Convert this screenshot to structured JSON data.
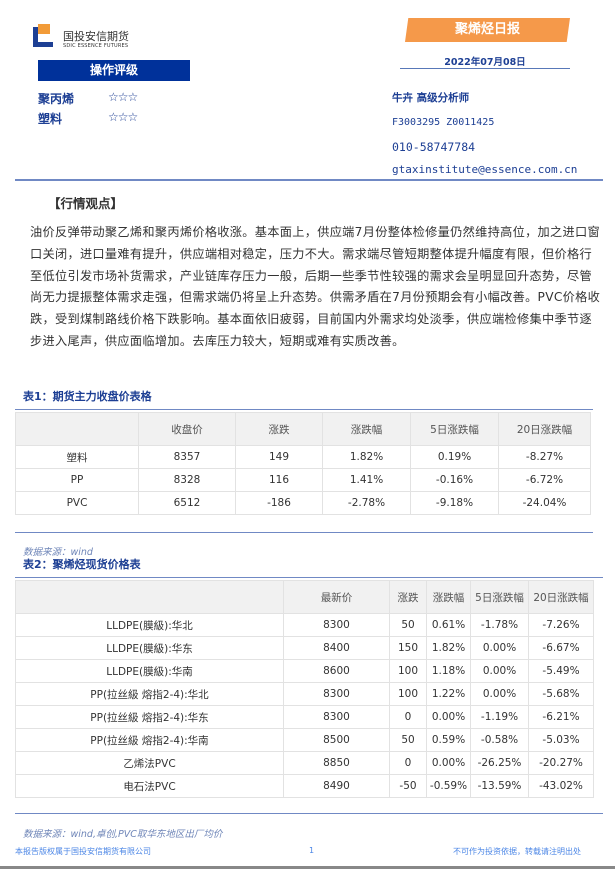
{
  "header": {
    "logo_cn": "国投安信期货",
    "logo_en": "SDIC ESSENCE FUTURES",
    "report_title": "聚烯烃日报",
    "date": "2022年07月08日"
  },
  "rating": {
    "title": "操作评级",
    "items": [
      {
        "label": "聚丙烯",
        "stars": "☆☆☆"
      },
      {
        "label": "塑料",
        "stars": "☆☆☆"
      }
    ]
  },
  "analyst": {
    "name": "牛卉 高级分析师",
    "codes": "F3003295 Z0011425",
    "phone": "010-58747784",
    "email": "gtaxinstitute@essence.com.cn"
  },
  "market_view": {
    "heading": "【行情观点】",
    "text": "油价反弹带动聚乙烯和聚丙烯价格收涨。基本面上，供应端7月份整体检修量仍然维持高位，加之进口窗口关闭，进口量难有提升，供应端相对稳定，压力不大。需求端尽管短期整体提升幅度有限，但价格行至低位引发市场补货需求，产业链库存压力一般，后期一些季节性较强的需求会呈明显回升态势，尽管尚无力提振整体需求走强，但需求端仍将呈上升态势。供需矛盾在7月份预期会有小幅改善。PVC价格收跌，受到煤制路线价格下跌影响。基本面依旧疲弱，目前国内外需求均处淡季，供应端检修集中季节逐步进入尾声，供应面临增加。去库压力较大，短期或难有实质改善。"
  },
  "table1": {
    "title": "表1：期货主力收盘价表格",
    "headers": [
      "",
      "收盘价",
      "涨跌",
      "涨跌幅",
      "5日涨跌幅",
      "20日涨跌幅"
    ],
    "rows": [
      [
        "塑料",
        "8357",
        "149",
        "1.82%",
        "0.19%",
        "-8.27%"
      ],
      [
        "PP",
        "8328",
        "116",
        "1.41%",
        "-0.16%",
        "-6.72%"
      ],
      [
        "PVC",
        "6512",
        "-186",
        "-2.78%",
        "-9.18%",
        "-24.04%"
      ]
    ],
    "source": "数据来源：wind"
  },
  "table2": {
    "title": "表2：聚烯烃现货价格表",
    "headers": [
      "",
      "最新价",
      "涨跌",
      "涨跌幅",
      "5日涨跌幅",
      "20日涨跌幅"
    ],
    "rows": [
      [
        "LLDPE(膜級):华北",
        "8300",
        "50",
        "0.61%",
        "-1.78%",
        "-7.26%"
      ],
      [
        "LLDPE(膜級):华东",
        "8400",
        "150",
        "1.82%",
        "0.00%",
        "-6.67%"
      ],
      [
        "LLDPE(膜級):华南",
        "8600",
        "100",
        "1.18%",
        "0.00%",
        "-5.49%"
      ],
      [
        "PP(拉丝級 熔指2-4):华北",
        "8300",
        "100",
        "1.22%",
        "0.00%",
        "-5.68%"
      ],
      [
        "PP(拉丝級 熔指2-4):华东",
        "8300",
        "0",
        "0.00%",
        "-1.19%",
        "-6.21%"
      ],
      [
        "PP(拉丝級 熔指2-4):华南",
        "8500",
        "50",
        "0.59%",
        "-0.58%",
        "-5.03%"
      ],
      [
        "乙烯法PVC",
        "8850",
        "0",
        "0.00%",
        "-26.25%",
        "-20.27%"
      ],
      [
        "电石法PVC",
        "8490",
        "-50",
        "-0.59%",
        "-13.59%",
        "-43.02%"
      ]
    ],
    "source": "数据来源：wind,卓创,PVC取华东地区出厂均价"
  },
  "footer": {
    "left": "本报告版权属于国投安信期货有限公司",
    "page": "1",
    "right": "不可作为投资依据，转载请注明出处"
  }
}
